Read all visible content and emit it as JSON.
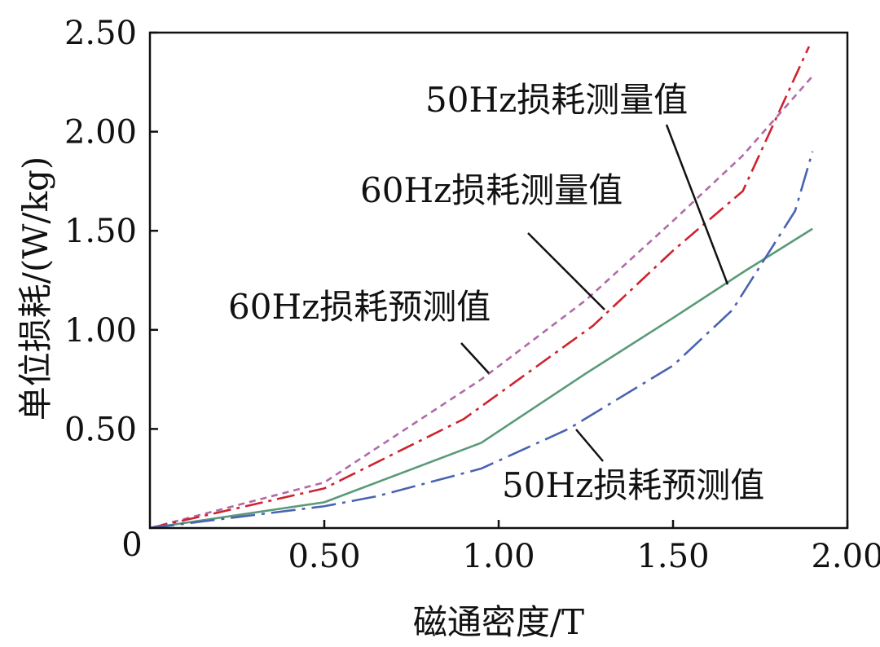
{
  "chart_data": {
    "type": "line",
    "xlabel": "磁通密度/T",
    "ylabel": "单位损耗/(W/kg)",
    "xlim": [
      0,
      2.0
    ],
    "ylim": [
      0,
      2.5
    ],
    "x_ticks": [
      {
        "value": 0.5,
        "label": "0.50"
      },
      {
        "value": 1.0,
        "label": "1.00"
      },
      {
        "value": 1.5,
        "label": "1.50"
      },
      {
        "value": 2.0,
        "label": "2.00"
      }
    ],
    "y_ticks": [
      {
        "value": 0.5,
        "label": "0.50"
      },
      {
        "value": 1.0,
        "label": "1.00"
      },
      {
        "value": 1.5,
        "label": "1.50"
      },
      {
        "value": 2.0,
        "label": "2.00"
      },
      {
        "value": 2.5,
        "label": "2.50"
      }
    ],
    "origin_label": "0",
    "grid": false,
    "series": [
      {
        "name": "60Hz损耗预测值",
        "color": "#b06aa8",
        "dash": "8,6",
        "x": [
          0,
          0.5,
          0.95,
          1.25,
          1.5,
          1.7,
          1.9
        ],
        "y": [
          0,
          0.23,
          0.75,
          1.15,
          1.55,
          1.88,
          2.28
        ]
      },
      {
        "name": "60Hz损耗测量值",
        "color": "#d0222e",
        "dash": "22,7,4,7",
        "x": [
          0,
          0.5,
          0.9,
          1.27,
          1.5,
          1.7,
          1.89
        ],
        "y": [
          0,
          0.2,
          0.55,
          1.02,
          1.4,
          1.7,
          2.43
        ]
      },
      {
        "name": "50Hz损耗测量值",
        "color": "#5a9a78",
        "dash": "",
        "x": [
          0,
          0.5,
          0.95,
          1.25,
          1.5,
          1.7,
          1.9
        ],
        "y": [
          0,
          0.13,
          0.43,
          0.78,
          1.06,
          1.29,
          1.51
        ]
      },
      {
        "name": "50Hz损耗预测值",
        "color": "#4a63b0",
        "dash": "30,8,4,8",
        "x": [
          0,
          0.5,
          0.65,
          0.95,
          1.2,
          1.5,
          1.67,
          1.85,
          1.9
        ],
        "y": [
          0,
          0.11,
          0.16,
          0.3,
          0.5,
          0.82,
          1.1,
          1.6,
          1.9
        ]
      }
    ],
    "annotations": [
      {
        "text": "50Hz损耗测量值",
        "series": "50Hz损耗测量值"
      },
      {
        "text": "60Hz损耗测量值",
        "series": "60Hz损耗测量值"
      },
      {
        "text": "60Hz损耗预测值",
        "series": "60Hz损耗预测值"
      },
      {
        "text": "50Hz损耗预测值",
        "series": "50Hz损耗预测值"
      }
    ]
  }
}
